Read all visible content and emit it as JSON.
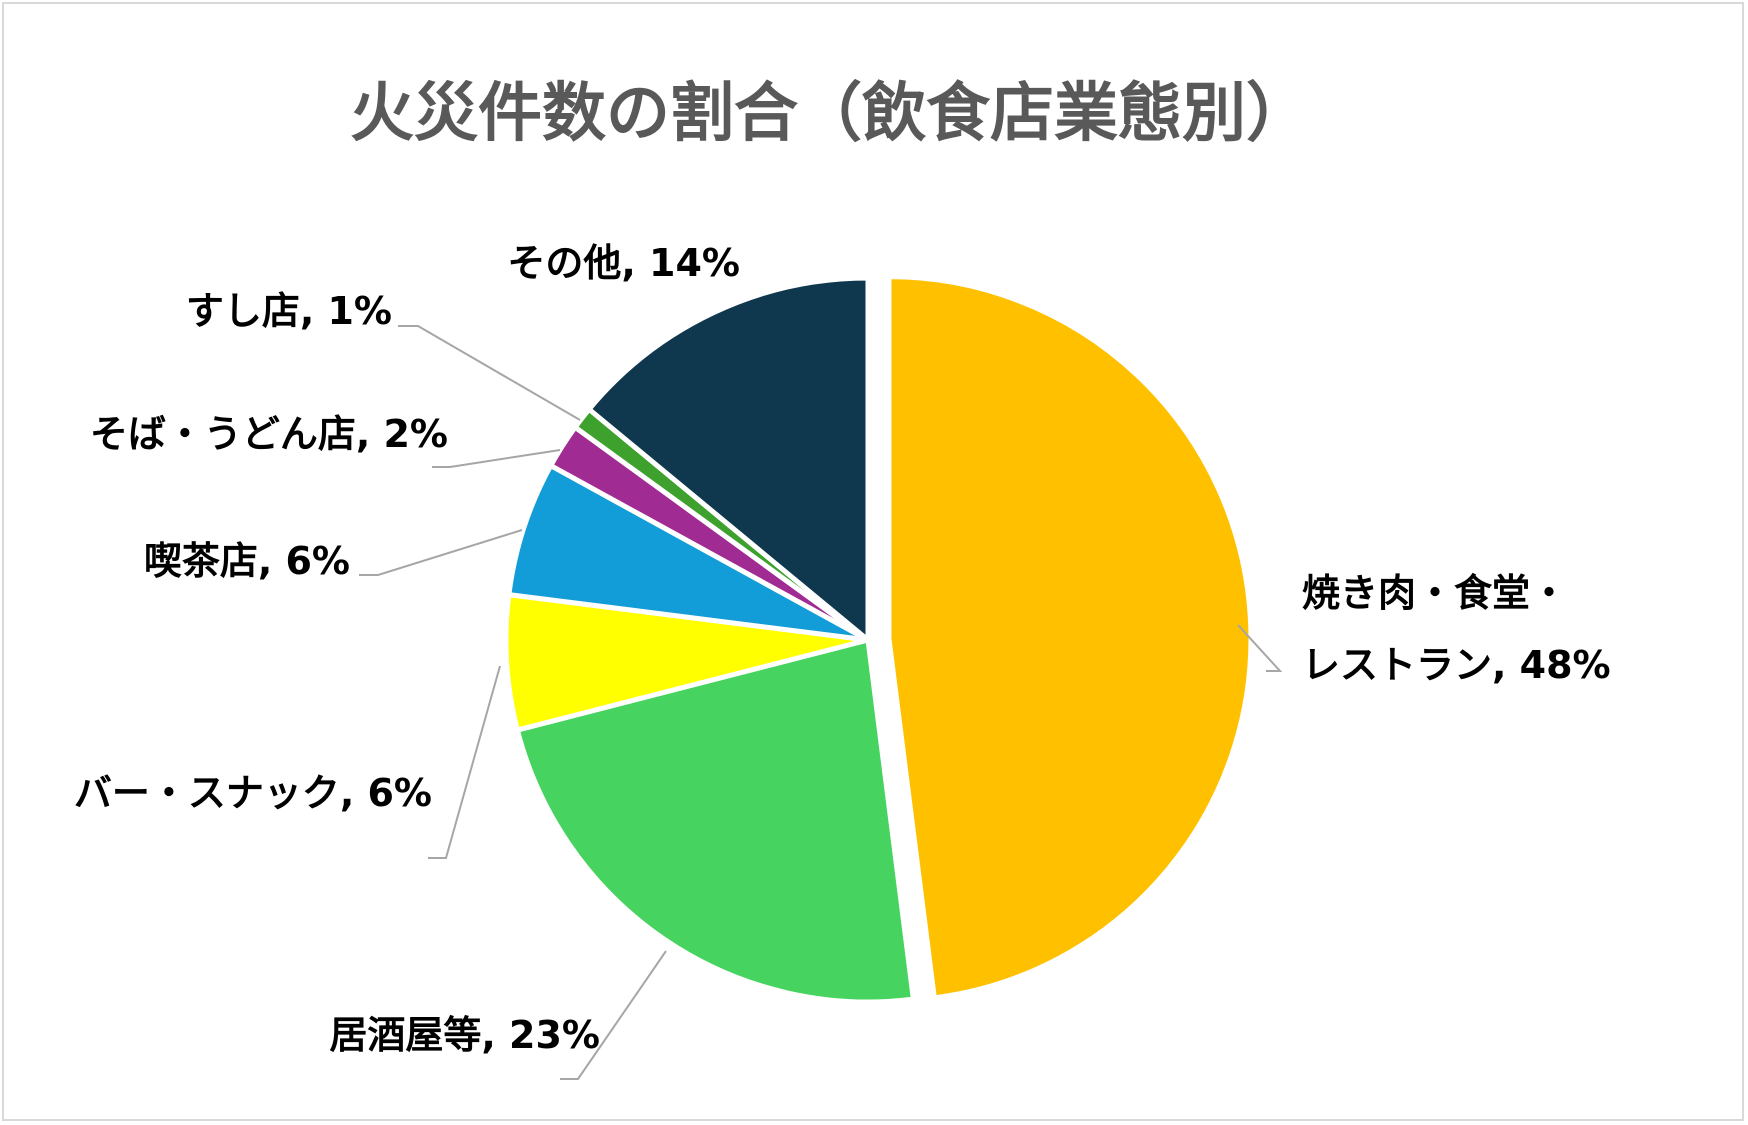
{
  "chart_data": {
    "type": "pie",
    "title": "火災件数の割合（飲食店業態別）",
    "slices": [
      {
        "name": "焼き肉・食堂・レストラン",
        "label": "焼き肉・食堂・レストラン, 48%",
        "value": 48,
        "color": "#FFC000",
        "exploded": true
      },
      {
        "name": "居酒屋等",
        "label": "居酒屋等, 23%",
        "value": 23,
        "color": "#47D35F",
        "exploded": false
      },
      {
        "name": "バー・スナック",
        "label": "バー・スナック, 6%",
        "value": 6,
        "color": "#FFFF00",
        "exploded": false
      },
      {
        "name": "喫茶店",
        "label": "喫茶店, 6%",
        "value": 6,
        "color": "#139DD8",
        "exploded": false
      },
      {
        "name": "そば・うどん店",
        "label": "そば・うどん店, 2%",
        "value": 2,
        "color": "#A02B93",
        "exploded": false
      },
      {
        "name": "すし店",
        "label": "すし店, 1%",
        "value": 1,
        "color": "#3FA12D",
        "exploded": false
      },
      {
        "name": "その他",
        "label": "その他, 14%",
        "value": 14,
        "color": "#0F384F",
        "exploded": false
      }
    ],
    "label_lines": {
      "焼き肉・食堂・レストラン": [
        "焼き肉・食堂・",
        "レストラン, 48%"
      ]
    },
    "leader_color": "#A6A6A6"
  }
}
